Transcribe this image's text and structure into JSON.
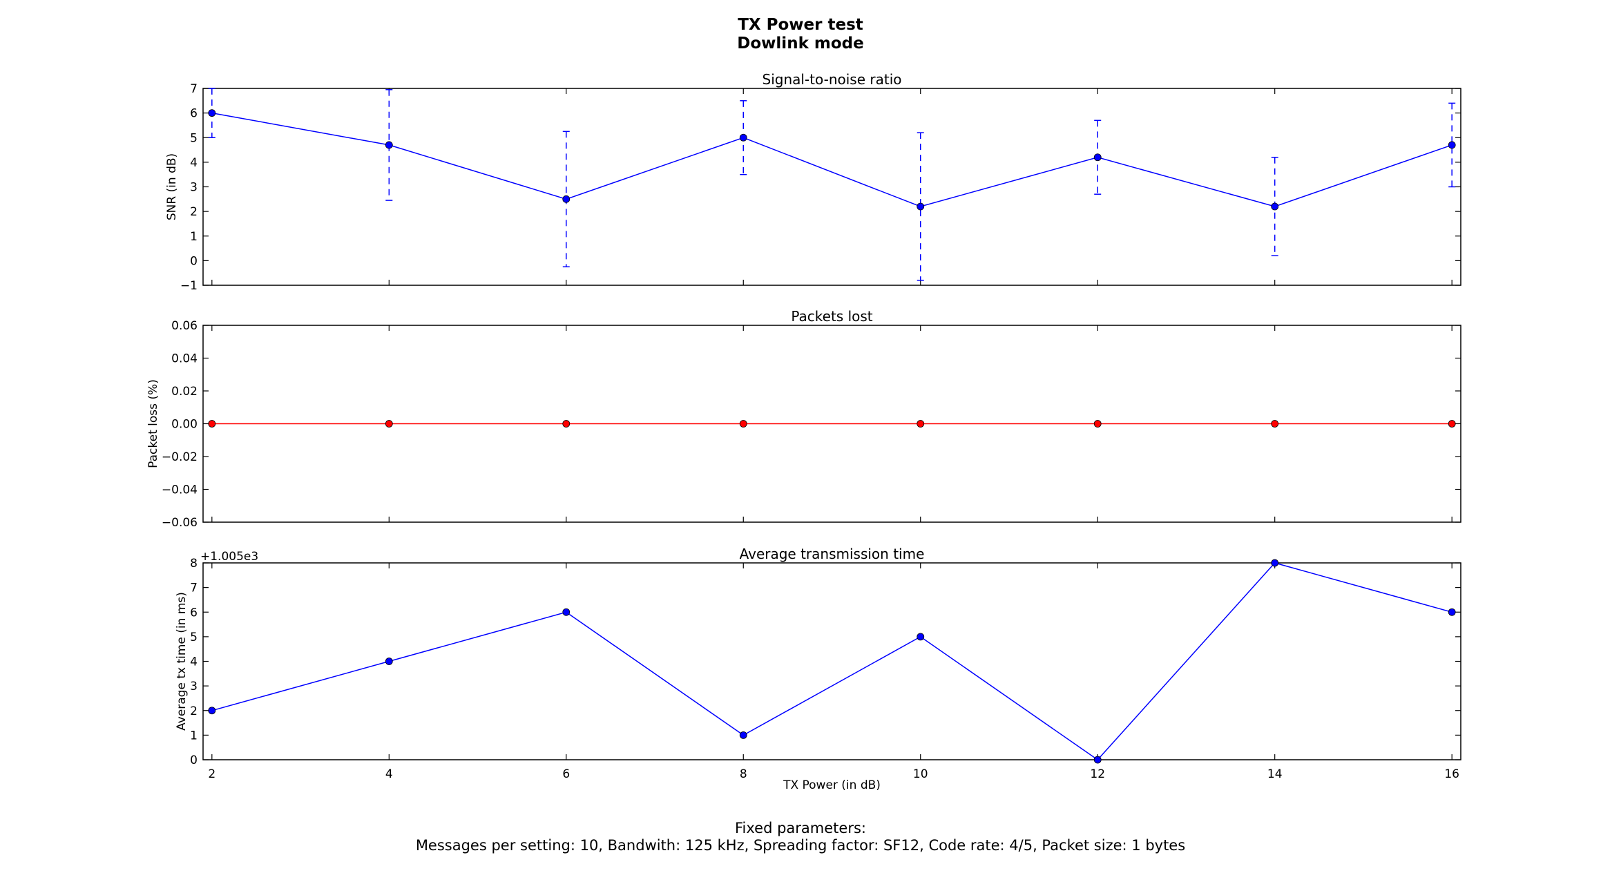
{
  "figure": {
    "title_line1": "TX Power test",
    "title_line2": "Dowlink mode",
    "footer_line1": "Fixed parameters:",
    "footer_line2": "Messages per setting: 10, Bandwith: 125 kHz, Spreading factor: SF12, Code rate: 4/5, Packet size: 1 bytes"
  },
  "chart_data": [
    {
      "type": "line",
      "title": "Signal-to-noise ratio",
      "xlabel": "",
      "ylabel": "SNR (in dB)",
      "x": [
        2,
        4,
        6,
        8,
        10,
        12,
        14,
        16
      ],
      "series": [
        {
          "values": [
            6.0,
            4.7,
            2.5,
            5.0,
            2.2,
            4.2,
            2.2,
            4.7
          ],
          "error": [
            1.0,
            2.25,
            2.75,
            1.5,
            3.0,
            1.5,
            2.0,
            1.7
          ],
          "color": "#0000ff",
          "error_style": "dashed"
        }
      ],
      "xlim": [
        1.9,
        16.1
      ],
      "ylim": [
        -1,
        7
      ],
      "yticks": [
        "−1",
        "0",
        "1",
        "2",
        "3",
        "4",
        "5",
        "6",
        "7"
      ],
      "xticks": [],
      "grid": false
    },
    {
      "type": "line",
      "title": "Packets lost",
      "xlabel": "",
      "ylabel": "Packet loss (%)",
      "x": [
        2,
        4,
        6,
        8,
        10,
        12,
        14,
        16
      ],
      "series": [
        {
          "values": [
            0,
            0,
            0,
            0,
            0,
            0,
            0,
            0
          ],
          "color": "#ff0000"
        }
      ],
      "xlim": [
        1.9,
        16.1
      ],
      "ylim": [
        -0.06,
        0.06
      ],
      "yticks": [
        "−0.06",
        "−0.04",
        "−0.02",
        "0.00",
        "0.02",
        "0.04",
        "0.06"
      ],
      "xticks": [],
      "grid": false
    },
    {
      "type": "line",
      "title": "Average transmission time",
      "xlabel": "TX Power (in dB)",
      "ylabel": "Average tx time (in ms)",
      "offset_label": "+1.005e3",
      "x": [
        2,
        4,
        6,
        8,
        10,
        12,
        14,
        16
      ],
      "series": [
        {
          "values": [
            2,
            4,
            6,
            1,
            5,
            0,
            8,
            6
          ],
          "color": "#0000ff"
        }
      ],
      "xlim": [
        1.9,
        16.1
      ],
      "ylim": [
        0,
        8
      ],
      "yticks": [
        "0",
        "1",
        "2",
        "3",
        "4",
        "5",
        "6",
        "7",
        "8"
      ],
      "xticks": [
        "2",
        "4",
        "6",
        "8",
        "10",
        "12",
        "14",
        "16"
      ],
      "grid": false
    }
  ]
}
